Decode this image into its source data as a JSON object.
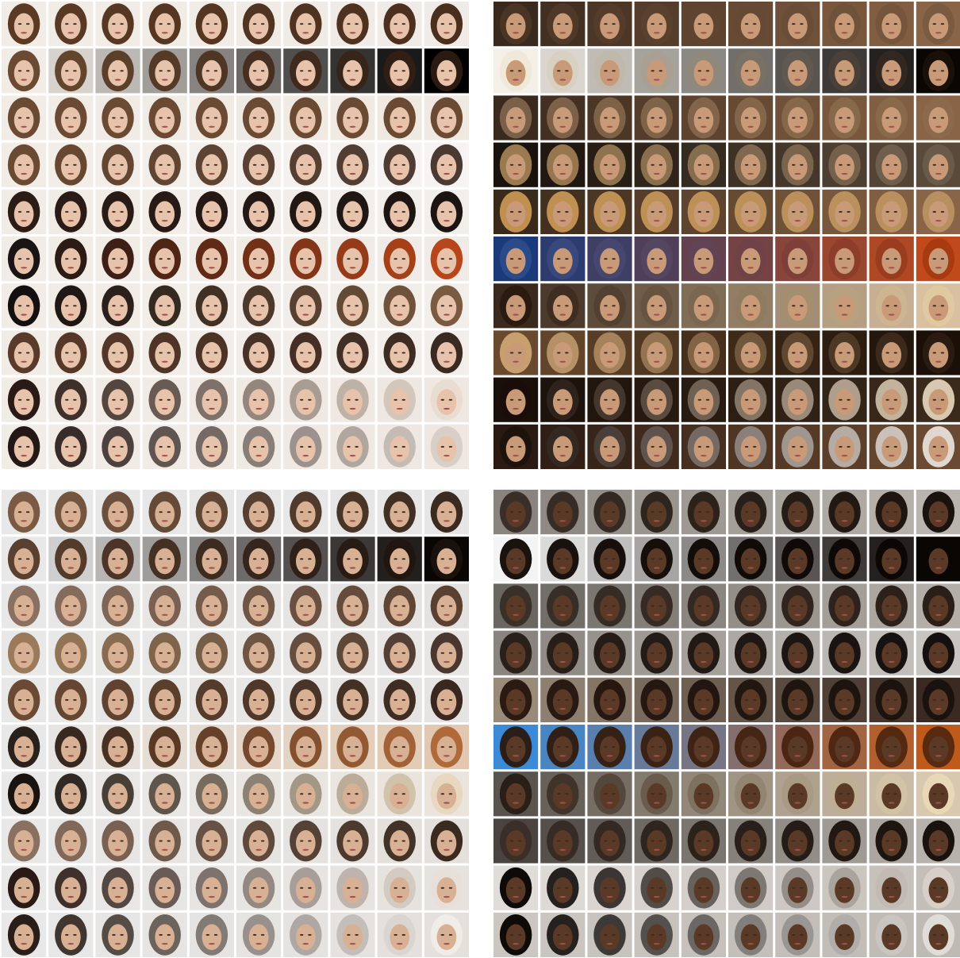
{
  "figure": {
    "panels": [
      {
        "id": "female-light",
        "rows": 10,
        "cols": 10,
        "skin": "#e6c3aa",
        "hair": "#5a3a24",
        "bg": "#f2ece6",
        "row_bg_end": [
          "#f0ebe6",
          "#000000",
          "#efe9e2",
          "#f6f3f2",
          "#f2eeea",
          "#f0ebe6",
          "#f2eeea",
          "#f2eeea",
          "#efe8e2",
          "#efe8e2"
        ],
        "row_hair_end": [
          "#4a2e1e",
          "#2a1a12",
          "#6a4a32",
          "#4a3a32",
          "#1c1412",
          "#b8461a",
          "#7a5a40",
          "#3a2a22",
          "#e8ddd0",
          "#d8cfc8"
        ],
        "row_hair_start": [
          "#5a3a24",
          "#6a4a32",
          "#6a4a32",
          "#6a4a32",
          "#2c1c16",
          "#1a1414",
          "#141010",
          "#5a3a2a",
          "#2a1a16",
          "#241816"
        ]
      },
      {
        "id": "female-dark-bg",
        "rows": 10,
        "cols": 10,
        "skin": "#c89a78",
        "hair": "#8a6a4a",
        "bg": "#6a4a32",
        "row_bg_end": [
          "#8a6446",
          "#0a0604",
          "#8a6446",
          "#5a4a3a",
          "#8a6446",
          "#c04a1a",
          "#d8c0a0",
          "#1a1008",
          "#3a2a1c",
          "#6a4a32"
        ],
        "row_hair_end": [
          "#7a5a40",
          "#1a100a",
          "#8a6a4a",
          "#6a5a4a",
          "#b89060",
          "#a83a10",
          "#e0c8a0",
          "#2a1a10",
          "#d8c8b0",
          "#e0d8d0"
        ],
        "row_hair_start": [
          "#4a3424",
          "#f0e8d8",
          "#7a6048",
          "#9a7a50",
          "#c09050",
          "#2a4a8a",
          "#2a1a10",
          "#c8a070",
          "#1a0c08",
          "#1e120c"
        ],
        "row_bg_start": [
          "#3a2a1e",
          "#f4f0e8",
          "#3a2a1e",
          "#1a120c",
          "#3a2a1a",
          "#1a3a7a",
          "#3a2a1e",
          "#6a4a2e",
          "#1a100a",
          "#2a1a12"
        ]
      },
      {
        "id": "male-light",
        "rows": 10,
        "cols": 10,
        "skin": "#d8b094",
        "hair": "#5a4030",
        "bg": "#e8e8e8",
        "row_bg_end": [
          "#e6e6e6",
          "#0a0604",
          "#e4e2e0",
          "#e8e6e4",
          "#e6e4e2",
          "#e2c8b0",
          "#eae4dc",
          "#e4e0dc",
          "#e6e2de",
          "#e4e0dc"
        ],
        "row_hair_end": [
          "#3a2a20",
          "#1a100c",
          "#5a4030",
          "#4a3830",
          "#3a2820",
          "#b06a3a",
          "#e8d8c0",
          "#3a2a20",
          "#e8e0d8",
          "#f0ece8"
        ],
        "row_hair_start": [
          "#7a5a44",
          "#5a4030",
          "#8a7060",
          "#9a7a5a",
          "#6a4a34",
          "#2a201c",
          "#1a1410",
          "#8a7060",
          "#2a1a16",
          "#2a1e18"
        ]
      },
      {
        "id": "male-dark",
        "rows": 10,
        "cols": 10,
        "skin": "#5a3a26",
        "hair": "#2a1e18",
        "bg": "#c8c2bc",
        "row_bg_end": [
          "#bab4ae",
          "#0a0604",
          "#b4aea8",
          "#c8c4c0",
          "#3a2a22",
          "#c05a1a",
          "#d8c8b0",
          "#b8b2ac",
          "#c4beb8",
          "#c0bab4"
        ],
        "row_hair_end": [
          "#1a120e",
          "#0a0604",
          "#2a1e18",
          "#141010",
          "#1a120e",
          "#5a2a10",
          "#e8d8b8",
          "#1a120e",
          "#d8d0c8",
          "#e0dcd8"
        ],
        "row_hair_start": [
          "#3a2e28",
          "#1a120e",
          "#3a302a",
          "#2a201a",
          "#2a1a12",
          "#2a1e18",
          "#2a1e18",
          "#3a2e28",
          "#0e0a08",
          "#0e0a08"
        ],
        "row_bg_start": [
          "#8a847e",
          "#f4f4f4",
          "#6a6660",
          "#8a847e",
          "#9a8a7a",
          "#3a8ad8",
          "#5a544e",
          "#4a4440",
          "#e0dcd8",
          "#ccc6c0"
        ]
      }
    ]
  }
}
